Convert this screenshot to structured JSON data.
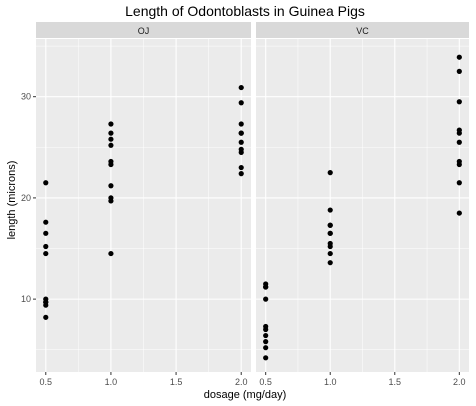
{
  "chart_data": {
    "type": "scatter",
    "title": "Length of Odontoblasts in Guinea Pigs",
    "xlabel": "dosage (mg/day)",
    "ylabel": "length (microns)",
    "xlim": [
      0.425,
      2.075
    ],
    "ylim": [
      2.8,
      35.7
    ],
    "x_ticks": [
      0.5,
      1.0,
      1.5,
      2.0
    ],
    "x_tick_labels": [
      "0.5",
      "1.0",
      "1.5",
      "2.0"
    ],
    "y_ticks": [
      10,
      20,
      30
    ],
    "y_tick_labels": [
      "10",
      "20",
      "30"
    ],
    "grid": true,
    "facets": [
      {
        "label": "OJ",
        "x": [
          0.5,
          0.5,
          0.5,
          0.5,
          0.5,
          0.5,
          0.5,
          0.5,
          0.5,
          0.5,
          1.0,
          1.0,
          1.0,
          1.0,
          1.0,
          1.0,
          1.0,
          1.0,
          1.0,
          1.0,
          2.0,
          2.0,
          2.0,
          2.0,
          2.0,
          2.0,
          2.0,
          2.0,
          2.0,
          2.0
        ],
        "y": [
          15.2,
          21.5,
          17.6,
          9.7,
          14.5,
          10.0,
          8.2,
          9.4,
          16.5,
          9.7,
          19.7,
          23.3,
          23.6,
          26.4,
          20.0,
          25.2,
          25.8,
          21.2,
          14.5,
          27.3,
          25.5,
          26.4,
          22.4,
          24.5,
          24.8,
          30.9,
          26.4,
          27.3,
          29.4,
          23.0
        ]
      },
      {
        "label": "VC",
        "x": [
          0.5,
          0.5,
          0.5,
          0.5,
          0.5,
          0.5,
          0.5,
          0.5,
          0.5,
          0.5,
          1.0,
          1.0,
          1.0,
          1.0,
          1.0,
          1.0,
          1.0,
          1.0,
          1.0,
          1.0,
          2.0,
          2.0,
          2.0,
          2.0,
          2.0,
          2.0,
          2.0,
          2.0,
          2.0,
          2.0
        ],
        "y": [
          4.2,
          11.5,
          7.3,
          5.8,
          6.4,
          10.0,
          11.2,
          11.2,
          5.2,
          7.0,
          16.5,
          16.5,
          15.2,
          17.3,
          22.5,
          17.3,
          13.6,
          14.5,
          18.8,
          15.5,
          23.6,
          18.5,
          33.9,
          25.5,
          26.4,
          32.5,
          26.7,
          21.5,
          23.3,
          29.5
        ]
      }
    ]
  }
}
